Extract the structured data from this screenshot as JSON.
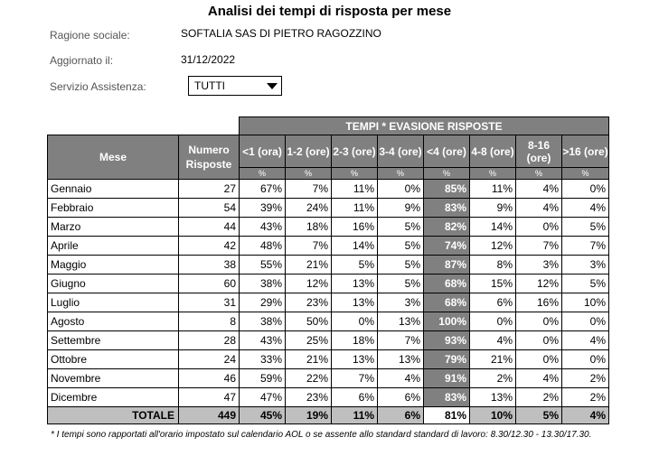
{
  "title": "Analisi dei tempi di risposta per mese",
  "info": {
    "ragione_label": "Ragione sociale:",
    "ragione_value": "SOFTALIA SAS DI PIETRO RAGOZZINO",
    "aggiornato_label": "Aggiornato il:",
    "aggiornato_value": "31/12/2022",
    "servizio_label": "Servizio Assistenza:",
    "servizio_value": "TUTTI"
  },
  "table": {
    "group_header": "TEMPI * EVASIONE RISPOSTE",
    "col_mese": "Mese",
    "col_numero": "Numero Risposte",
    "cols": [
      "<1 (ora)",
      "1-2 (ore)",
      "2-3 (ore)",
      "3-4 (ore)",
      "<4 (ore)",
      "4-8 (ore)",
      "8-16 (ore)",
      ">16 (ore)"
    ],
    "pct_symbol": "%",
    "rows": [
      {
        "mese": "Gennaio",
        "n": "27",
        "v": [
          "67%",
          "7%",
          "11%",
          "0%",
          "85%",
          "11%",
          "4%",
          "0%"
        ]
      },
      {
        "mese": "Febbraio",
        "n": "54",
        "v": [
          "39%",
          "24%",
          "11%",
          "9%",
          "83%",
          "9%",
          "4%",
          "4%"
        ]
      },
      {
        "mese": "Marzo",
        "n": "44",
        "v": [
          "43%",
          "18%",
          "16%",
          "5%",
          "82%",
          "14%",
          "0%",
          "5%"
        ]
      },
      {
        "mese": "Aprile",
        "n": "42",
        "v": [
          "48%",
          "7%",
          "14%",
          "5%",
          "74%",
          "12%",
          "7%",
          "7%"
        ]
      },
      {
        "mese": "Maggio",
        "n": "38",
        "v": [
          "55%",
          "21%",
          "5%",
          "5%",
          "87%",
          "8%",
          "3%",
          "3%"
        ]
      },
      {
        "mese": "Giugno",
        "n": "60",
        "v": [
          "38%",
          "12%",
          "13%",
          "5%",
          "68%",
          "15%",
          "12%",
          "5%"
        ]
      },
      {
        "mese": "Luglio",
        "n": "31",
        "v": [
          "29%",
          "23%",
          "13%",
          "3%",
          "68%",
          "6%",
          "16%",
          "10%"
        ]
      },
      {
        "mese": "Agosto",
        "n": "8",
        "v": [
          "38%",
          "50%",
          "0%",
          "13%",
          "100%",
          "0%",
          "0%",
          "0%"
        ]
      },
      {
        "mese": "Settembre",
        "n": "28",
        "v": [
          "43%",
          "25%",
          "18%",
          "7%",
          "93%",
          "4%",
          "0%",
          "4%"
        ]
      },
      {
        "mese": "Ottobre",
        "n": "24",
        "v": [
          "33%",
          "21%",
          "13%",
          "13%",
          "79%",
          "21%",
          "0%",
          "0%"
        ]
      },
      {
        "mese": "Novembre",
        "n": "46",
        "v": [
          "59%",
          "22%",
          "7%",
          "4%",
          "91%",
          "2%",
          "4%",
          "2%"
        ]
      },
      {
        "mese": "Dicembre",
        "n": "47",
        "v": [
          "47%",
          "23%",
          "6%",
          "6%",
          "83%",
          "13%",
          "2%",
          "2%"
        ]
      }
    ],
    "totale": {
      "label": "TOTALE",
      "n": "449",
      "v": [
        "45%",
        "19%",
        "11%",
        "6%",
        "81%",
        "10%",
        "5%",
        "4%"
      ]
    }
  },
  "footnote": "* I tempi sono rapportati all'orario impostato sul calendario  AOL o se assente allo standard  standard di lavoro: 8.30/12.30 - 13.30/17.30."
}
